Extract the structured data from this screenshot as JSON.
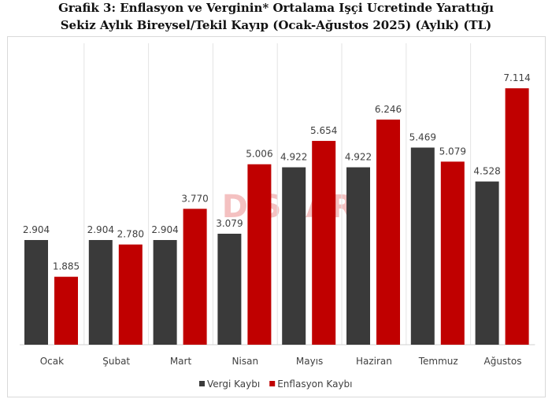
{
  "chart_data": {
    "type": "bar",
    "title": "Grafik 3: Enflasyon ve Verginin* Ortalama Işçi Ucretinde Yarattığı",
    "subtitle": "Sekiz Aylık Bireysel/Tekil Kayıp (Ocak-Ağustos 2025) (Aylık) (TL)",
    "categories": [
      "Ocak",
      "Şubat",
      "Mart",
      "Nisan",
      "Mayıs",
      "Haziran",
      "Temmuz",
      "Ağustos"
    ],
    "series": [
      {
        "name": "Vergi Kaybı",
        "color": "#3a3a3a",
        "values": [
          2904,
          2904,
          2904,
          3079,
          4922,
          4922,
          5469,
          4528
        ]
      },
      {
        "name": "Enflasyon Kaybı",
        "color": "#c00000",
        "values": [
          1885,
          2780,
          3770,
          5006,
          5654,
          6246,
          5079,
          7114
        ]
      }
    ],
    "ylim": [
      0,
      8000
    ],
    "grid": false,
    "legend": "bottom",
    "watermark": "DiSKAR"
  }
}
